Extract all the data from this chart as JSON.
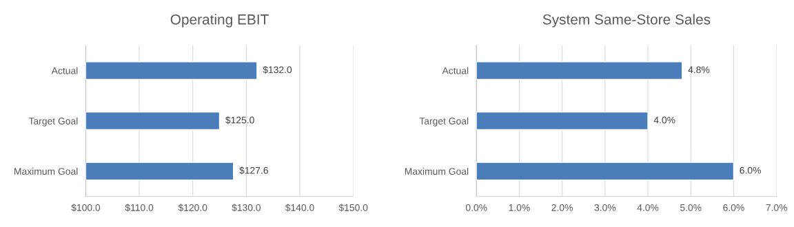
{
  "chart_data": [
    {
      "type": "bar",
      "orientation": "horizontal",
      "title": "Operating EBIT",
      "categories": [
        "Actual",
        "Target Goal",
        "Maximum Goal"
      ],
      "values": [
        132.0,
        125.0,
        127.6
      ],
      "value_labels": [
        "$132.0",
        "$125.0",
        "$127.6"
      ],
      "color": "#4a7ebb",
      "xlim": [
        100,
        150
      ],
      "xticks": [
        {
          "value": 100,
          "label": "$100.0"
        },
        {
          "value": 110,
          "label": "$110.0"
        },
        {
          "value": 120,
          "label": "$120.0"
        },
        {
          "value": 130,
          "label": "$130.0"
        },
        {
          "value": 140,
          "label": "$140.0"
        },
        {
          "value": 150,
          "label": "$150.0"
        }
      ],
      "grid": "x",
      "legend": false
    },
    {
      "type": "bar",
      "orientation": "horizontal",
      "title": "System Same-Store Sales",
      "categories": [
        "Actual",
        "Target Goal",
        "Maximum Goal"
      ],
      "values": [
        4.8,
        4.0,
        6.0
      ],
      "value_labels": [
        "4.8%",
        "4.0%",
        "6.0%"
      ],
      "color": "#4a7ebb",
      "xlim": [
        0,
        7
      ],
      "xticks": [
        {
          "value": 0,
          "label": "0.0%"
        },
        {
          "value": 1,
          "label": "1.0%"
        },
        {
          "value": 2,
          "label": "2.0%"
        },
        {
          "value": 3,
          "label": "3.0%"
        },
        {
          "value": 4,
          "label": "4.0%"
        },
        {
          "value": 5,
          "label": "5.0%"
        },
        {
          "value": 6,
          "label": "6.0%"
        },
        {
          "value": 7,
          "label": "7.0%"
        }
      ],
      "grid": "x",
      "legend": false
    }
  ]
}
